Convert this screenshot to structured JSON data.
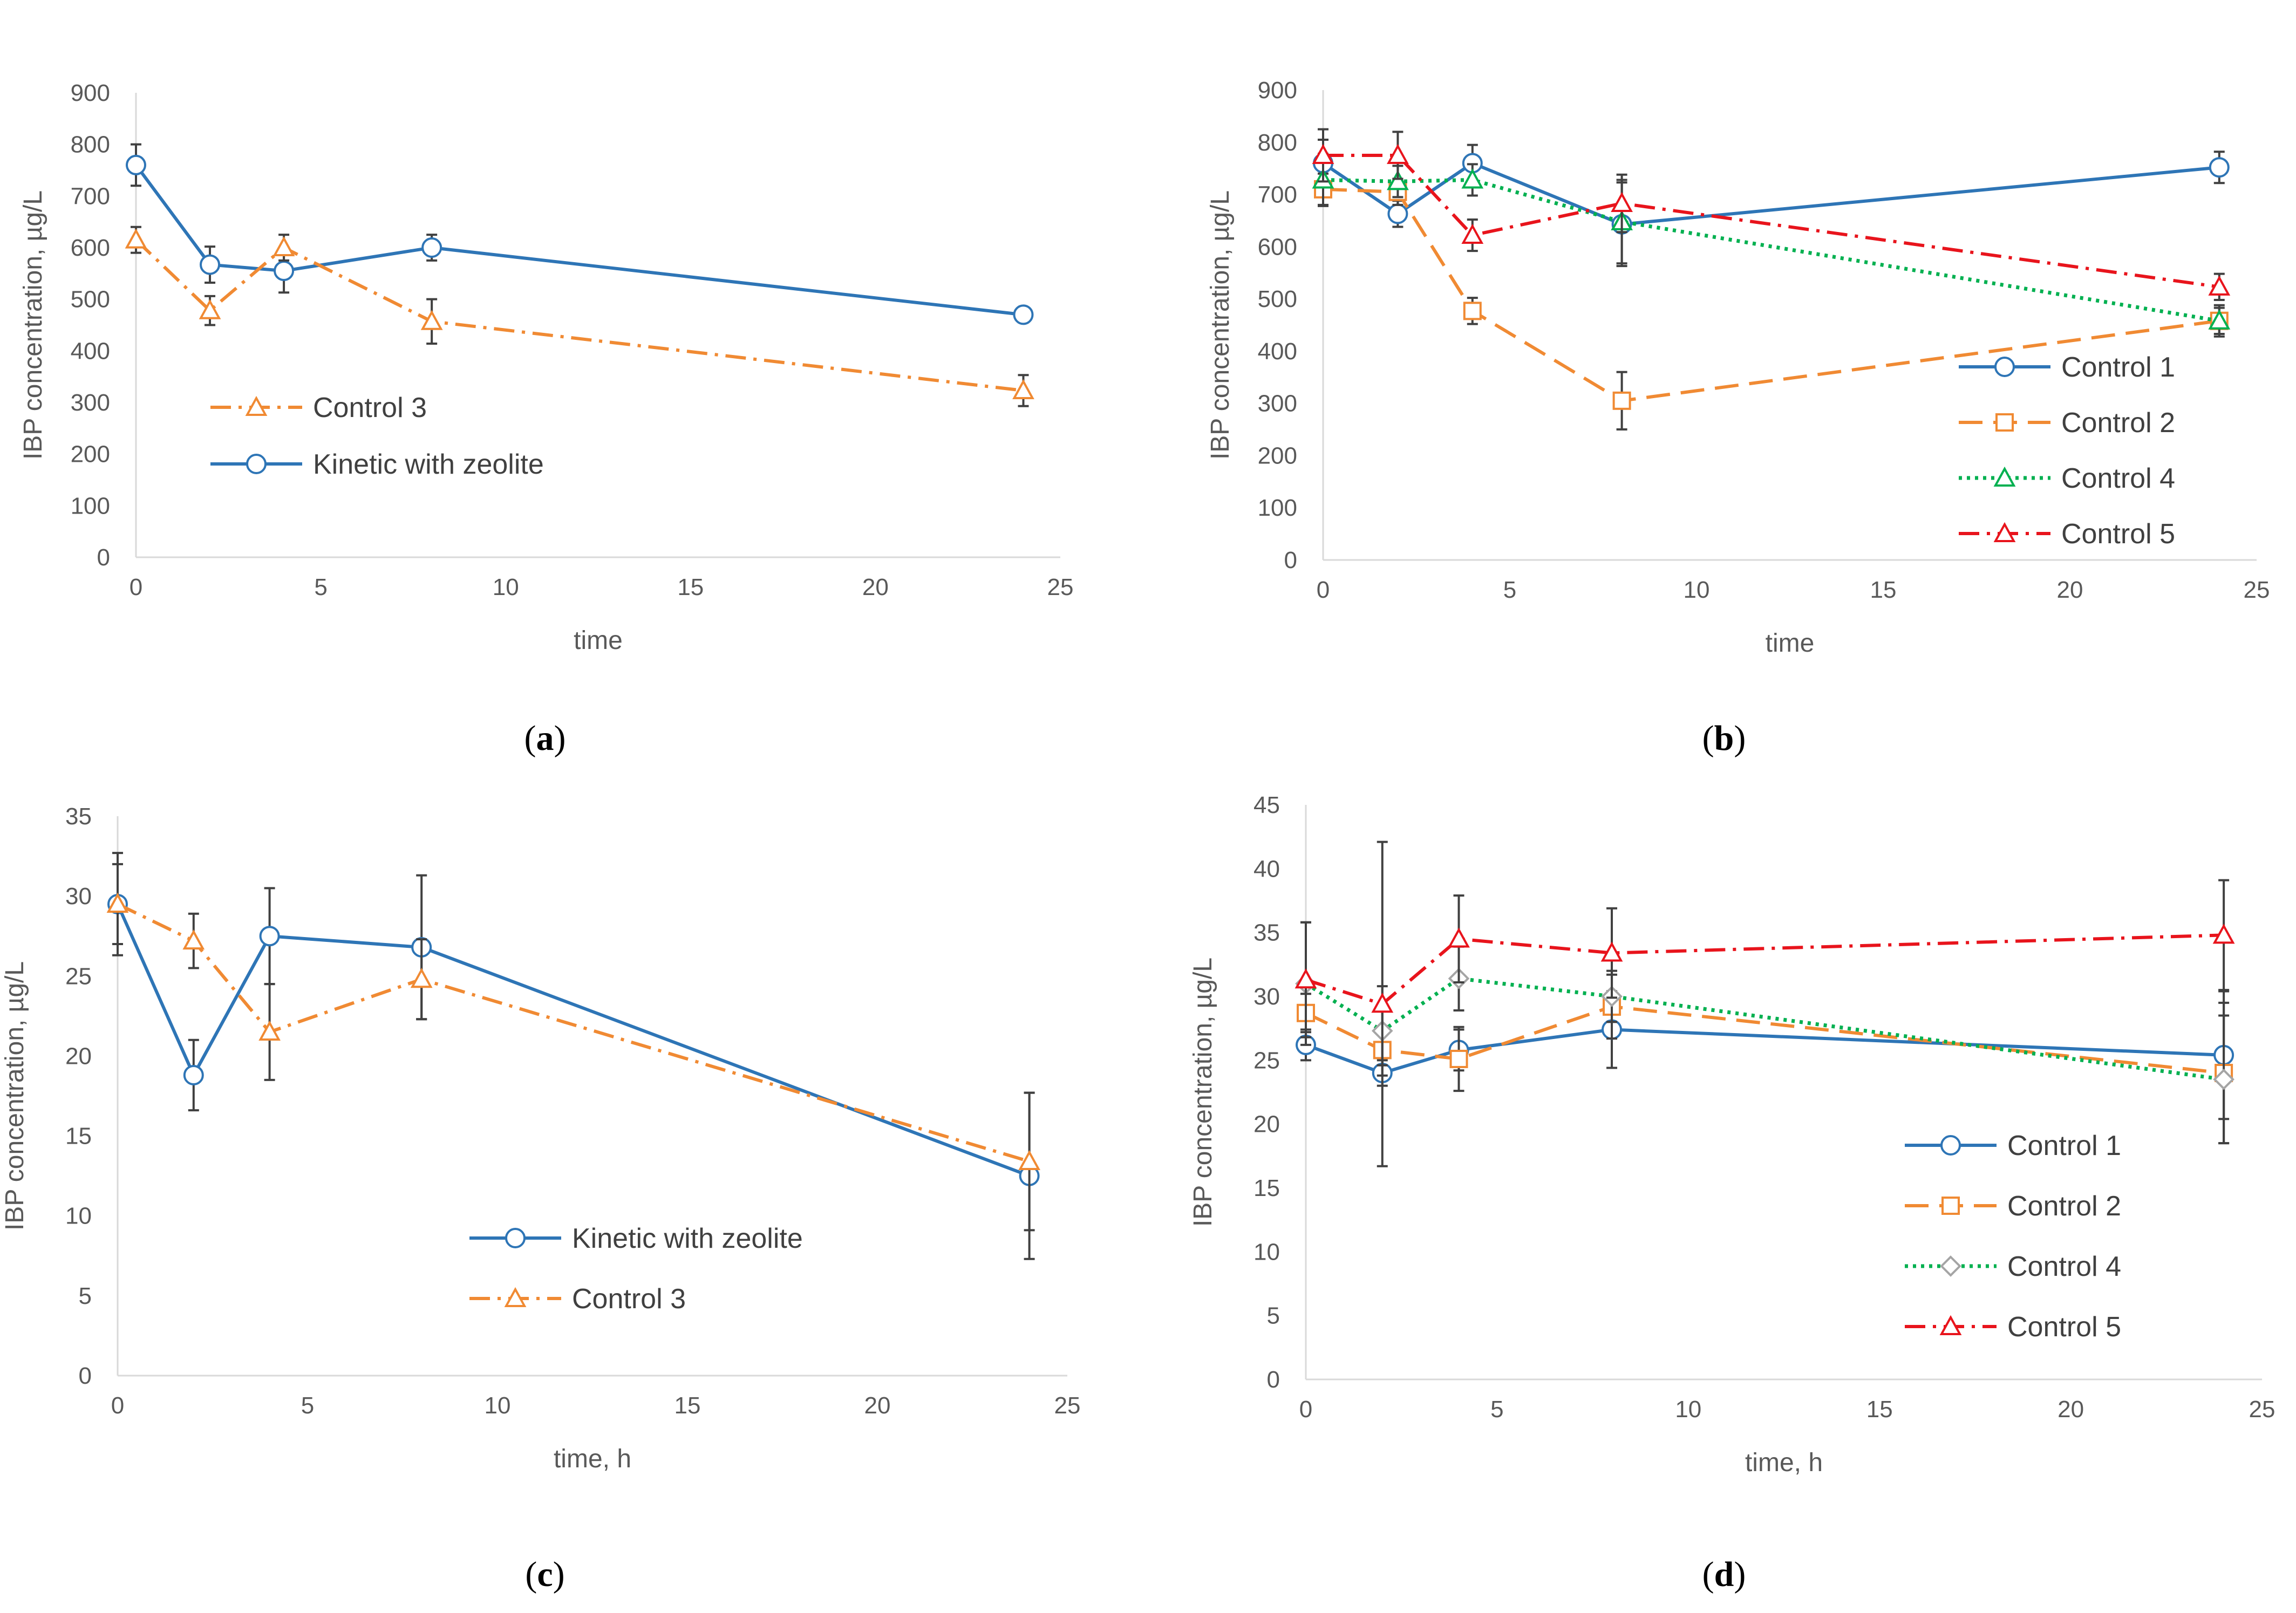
{
  "chart_data": [
    {
      "id": "a",
      "type": "line",
      "caption_letter": "a",
      "xlabel": "time",
      "ylabel": "IBP concentration, µg/L",
      "xlim": [
        0,
        25
      ],
      "ylim": [
        0,
        900
      ],
      "xticks": [
        0,
        5,
        10,
        15,
        20,
        25
      ],
      "yticks": [
        0,
        100,
        200,
        300,
        400,
        500,
        600,
        700,
        800,
        900
      ],
      "legend_position": "center-left",
      "legend_order": [
        "Control 3",
        "Kinetic with zeolite"
      ],
      "series": [
        {
          "name": "Kinetic with zeolite",
          "color": "#2e75b6",
          "dash": "solid",
          "marker": "circle",
          "x": [
            0,
            2,
            4,
            8,
            24
          ],
          "y": [
            760,
            567,
            555,
            600,
            470
          ],
          "err": [
            40,
            35,
            42,
            25,
            15
          ]
        },
        {
          "name": "Control 3",
          "color": "#f08a33",
          "dash": "dashdot",
          "marker": "triangle",
          "x": [
            0,
            2,
            4,
            8,
            24
          ],
          "y": [
            615,
            478,
            600,
            457,
            323
          ],
          "err": [
            25,
            28,
            25,
            43,
            30
          ]
        }
      ]
    },
    {
      "id": "b",
      "type": "line",
      "caption_letter": "b",
      "xlabel": "time",
      "ylabel": "IBP concentration, µg/L",
      "xlim": [
        0,
        25
      ],
      "ylim": [
        0,
        900
      ],
      "xticks": [
        0,
        5,
        10,
        15,
        20,
        25
      ],
      "yticks": [
        0,
        100,
        200,
        300,
        400,
        500,
        600,
        700,
        800,
        900
      ],
      "legend_position": "bottom-right",
      "legend_order": [
        "Control 1",
        "Control 2",
        "Control 4",
        "Control 5"
      ],
      "series": [
        {
          "name": "Control 1",
          "color": "#2e75b6",
          "dash": "solid",
          "marker": "circle",
          "x": [
            0,
            2,
            4,
            8,
            24
          ],
          "y": [
            760,
            663,
            760,
            643,
            752
          ],
          "err": [
            45,
            25,
            35,
            80,
            30
          ]
        },
        {
          "name": "Control 2",
          "color": "#f08a33",
          "dash": "longdash",
          "marker": "square",
          "x": [
            0,
            2,
            4,
            8,
            24
          ],
          "y": [
            710,
            705,
            477,
            305,
            458
          ],
          "err": [
            30,
            25,
            25,
            55,
            30
          ]
        },
        {
          "name": "Control 4",
          "color": "#00b050",
          "dash": "dotted",
          "marker": "triangle",
          "x": [
            0,
            2,
            4,
            8,
            24
          ],
          "y": [
            728,
            725,
            728,
            648,
            458
          ],
          "err": [
            50,
            30,
            30,
            80,
            25
          ]
        },
        {
          "name": "Control 5",
          "color": "#e8141c",
          "dash": "dashdot",
          "marker": "triangle",
          "x": [
            0,
            2,
            4,
            8,
            24
          ],
          "y": [
            775,
            775,
            622,
            683,
            523
          ],
          "err": [
            50,
            45,
            30,
            55,
            25
          ]
        }
      ]
    },
    {
      "id": "c",
      "type": "line",
      "caption_letter": "c",
      "xlabel": "time, h",
      "ylabel": "IBP concentration, µg/L",
      "xlim": [
        0,
        25
      ],
      "ylim": [
        0,
        35
      ],
      "xticks": [
        0,
        5,
        10,
        15,
        20,
        25
      ],
      "yticks": [
        0,
        5,
        10,
        15,
        20,
        25,
        30,
        35
      ],
      "legend_position": "lower-center",
      "legend_order": [
        "Kinetic with zeolite",
        "Control 3"
      ],
      "series": [
        {
          "name": "Kinetic with zeolite",
          "color": "#2e75b6",
          "dash": "solid",
          "marker": "circle",
          "x": [
            0,
            2,
            4,
            8,
            24
          ],
          "y": [
            29.5,
            18.8,
            27.5,
            26.8,
            12.5
          ],
          "err": [
            3.2,
            2.2,
            3.0,
            4.5,
            5.2
          ]
        },
        {
          "name": "Control 3",
          "color": "#f08a33",
          "dash": "dashdot",
          "marker": "triangle",
          "x": [
            0,
            2,
            4,
            8,
            24
          ],
          "y": [
            29.5,
            27.2,
            21.5,
            24.8,
            13.4
          ],
          "err": [
            2.5,
            1.7,
            3.0,
            2.5,
            4.3
          ]
        }
      ]
    },
    {
      "id": "d",
      "type": "line",
      "caption_letter": "d",
      "xlabel": "time, h",
      "ylabel": "IBP concentration, µg/L",
      "xlim": [
        0,
        25
      ],
      "ylim": [
        0,
        45
      ],
      "xticks": [
        0,
        5,
        10,
        15,
        20,
        25
      ],
      "yticks": [
        0,
        5,
        10,
        15,
        20,
        25,
        30,
        35,
        40,
        45
      ],
      "legend_position": "bottom-right",
      "legend_order": [
        "Control 1",
        "Control 2",
        "Control 4",
        "Control 5"
      ],
      "series": [
        {
          "name": "Control 1",
          "color": "#2e75b6",
          "dash": "solid",
          "marker": "circle",
          "x": [
            0,
            2,
            4,
            8,
            24
          ],
          "y": [
            26.2,
            24.0,
            25.8,
            27.4,
            25.4
          ],
          "err": [
            1.2,
            1.0,
            1.6,
            3.0,
            5.0
          ]
        },
        {
          "name": "Control 2",
          "color": "#f08a33",
          "dash": "longdash",
          "marker": "square",
          "x": [
            0,
            2,
            4,
            8,
            24
          ],
          "y": [
            28.7,
            25.8,
            25.1,
            29.2,
            24.0
          ],
          "err": [
            1.5,
            1.2,
            2.5,
            2.5,
            5.5
          ]
        },
        {
          "name": "Control 4",
          "color": "#00b050",
          "dash": "dotted",
          "marker": "diamond",
          "x": [
            0,
            2,
            4,
            8,
            24
          ],
          "y": [
            31.0,
            27.3,
            31.4,
            30.0,
            23.5
          ],
          "err": [
            4.8,
            3.5,
            2.5,
            2.0,
            5.0
          ]
        },
        {
          "name": "Control 5",
          "color": "#e8141c",
          "dash": "dashdot",
          "marker": "triangle",
          "x": [
            0,
            2,
            4,
            8,
            24
          ],
          "y": [
            31.3,
            29.4,
            34.5,
            33.4,
            34.8
          ],
          "err": [
            4.5,
            12.7,
            3.4,
            3.5,
            4.3
          ]
        }
      ]
    }
  ]
}
